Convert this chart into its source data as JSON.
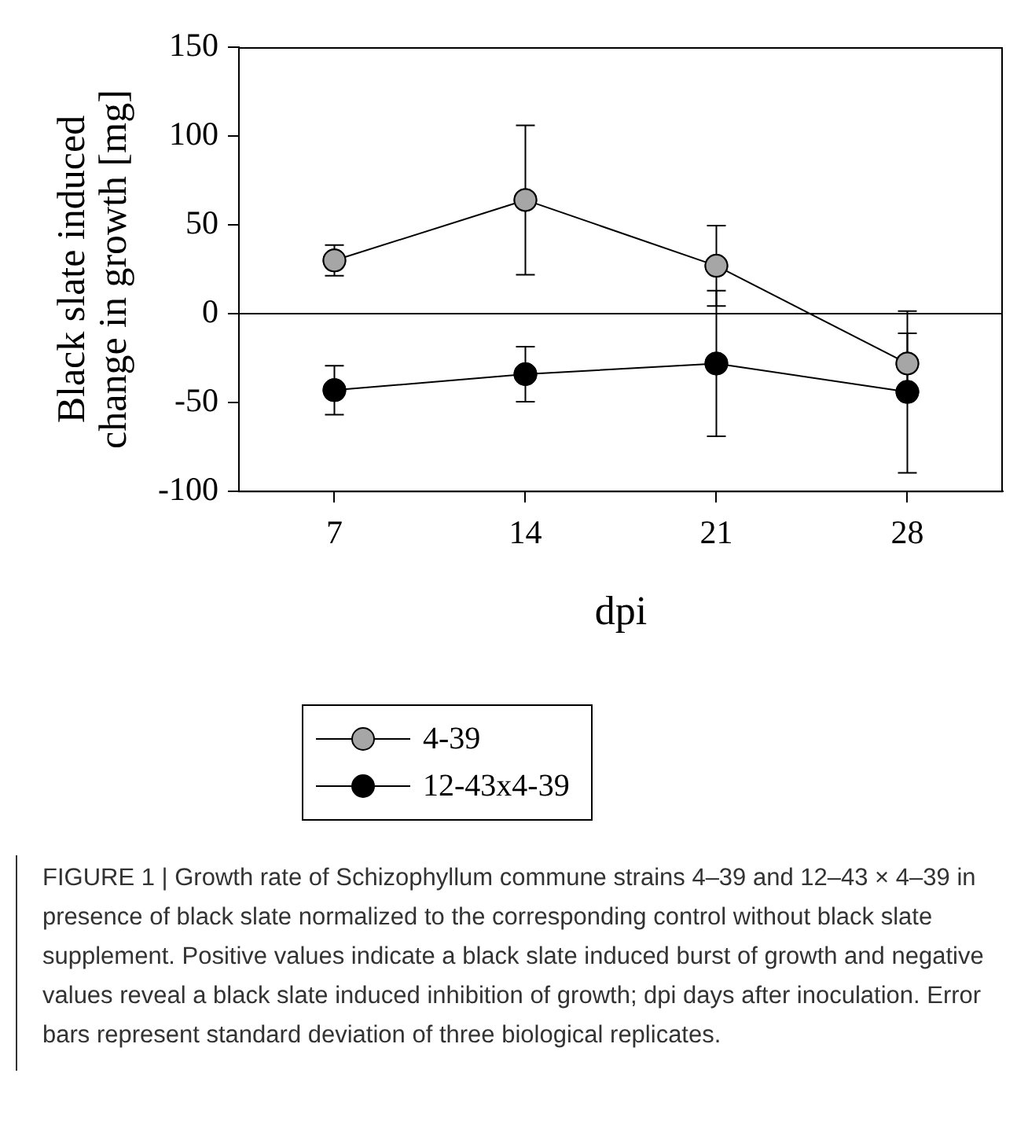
{
  "chart_data": {
    "type": "line",
    "xlabel": "dpi",
    "ylabel": "Black slate induced change in growth [mg]",
    "categories": [
      "7",
      "14",
      "21",
      "28"
    ],
    "series": [
      {
        "name": "4-39",
        "color": "#a6a6a6",
        "values": [
          30,
          64,
          27,
          -28
        ],
        "errors": [
          8.6,
          42,
          22.6,
          17
        ]
      },
      {
        "name": "12-43x4-39",
        "color": "#000000",
        "values": [
          -43,
          -34,
          -28,
          -44
        ],
        "errors": [
          13.8,
          15.5,
          41,
          45.5
        ]
      }
    ],
    "ylim": [
      -100,
      150
    ],
    "yticks": [
      -100,
      -50,
      0,
      50,
      100,
      150
    ],
    "ref_lines": [
      {
        "axis": "y",
        "value": 0,
        "color": "#000000"
      }
    ],
    "grid": false,
    "legend": "bottom",
    "marker": "circle",
    "line_style": "solid",
    "annotations": [
      "FIGURE 1 | Growth rate of Schizophyllum commune strains 4–39 and 12–43 × 4–39 in presence of black slate normalized to the corresponding control without black slate supplement. Positive values indicate a black slate induced burst of growth and negative values reveal a black slate induced inhibition of growth; dpi days after inoculation. Error bars represent standard deviation of three biological replicates."
    ]
  }
}
